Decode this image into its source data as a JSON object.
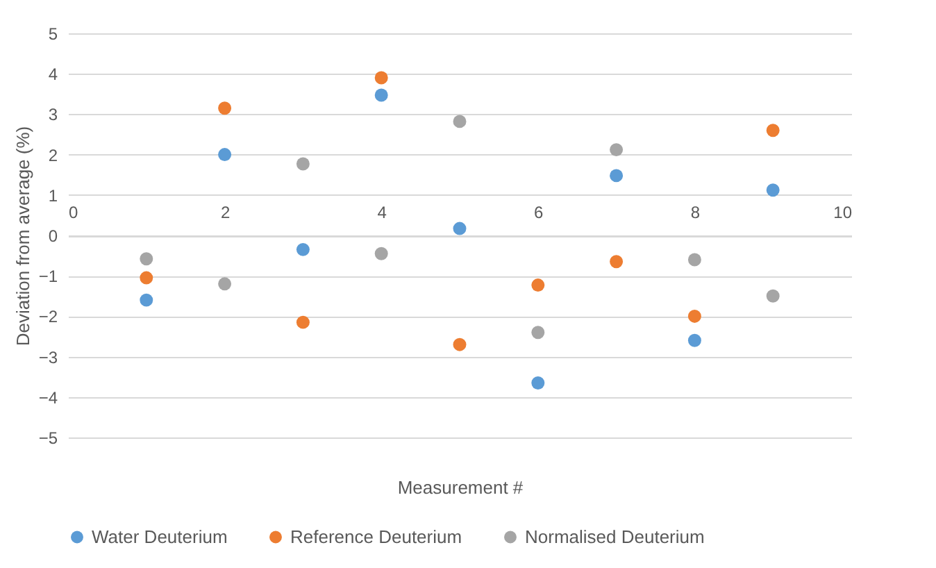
{
  "chart_data": {
    "type": "scatter",
    "xlabel": "Measurement #",
    "ylabel": "Deviation from average (%)",
    "xlim": [
      0,
      10
    ],
    "xticks": [
      0,
      2,
      4,
      6,
      8,
      10
    ],
    "ylim": [
      -5,
      5
    ],
    "yticks": [
      -5,
      -4,
      -3,
      -2,
      -1,
      0,
      1,
      2,
      3,
      4,
      5
    ],
    "grid": "y",
    "legend": "bottom",
    "marker": "circle",
    "series": [
      {
        "name": "Water Deuterium",
        "color": "#5b9bd5",
        "x": [
          1,
          2,
          3,
          4,
          5,
          6,
          7,
          8,
          9
        ],
        "values": [
          -1.6,
          2.0,
          -0.35,
          3.47,
          0.17,
          -3.65,
          1.48,
          -2.6,
          1.12
        ]
      },
      {
        "name": "Reference Deuterium",
        "color": "#ed7d31",
        "x": [
          1,
          2,
          3,
          4,
          5,
          6,
          7,
          8,
          9
        ],
        "values": [
          -1.05,
          3.15,
          -2.15,
          3.9,
          -2.7,
          -1.23,
          -0.65,
          -2.0,
          2.6
        ]
      },
      {
        "name": "Normalised Deuterium",
        "color": "#a5a5a5",
        "x": [
          1,
          2,
          3,
          4,
          5,
          6,
          7,
          8,
          9
        ],
        "values": [
          -0.58,
          -1.2,
          1.77,
          -0.45,
          2.82,
          -2.4,
          2.12,
          -0.6,
          -1.5
        ]
      }
    ]
  }
}
